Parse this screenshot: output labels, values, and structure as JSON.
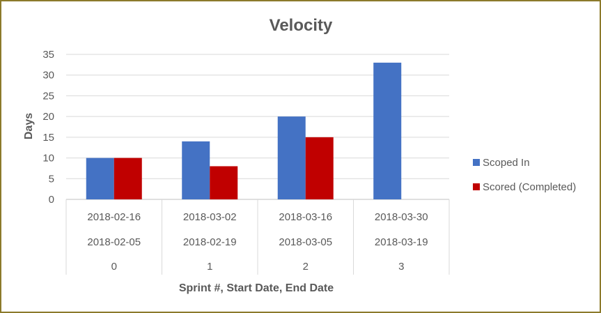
{
  "chart_data": {
    "type": "bar",
    "title": "Velocity",
    "ylabel": "Days",
    "xlabel": "Sprint #, Start Date, End Date",
    "ylim": [
      0,
      35
    ],
    "yticks": [
      0,
      5,
      10,
      15,
      20,
      25,
      30,
      35
    ],
    "grid": true,
    "legend_position": "right",
    "category_levels": {
      "end_date": [
        "2018-02-16",
        "2018-03-02",
        "2018-03-16",
        "2018-03-30"
      ],
      "start_date": [
        "2018-02-05",
        "2018-02-19",
        "2018-03-05",
        "2018-03-19"
      ],
      "sprint": [
        "0",
        "1",
        "2",
        "3"
      ]
    },
    "series": [
      {
        "name": "Scoped In",
        "color": "#4472c4",
        "values": [
          10,
          14,
          20,
          33
        ]
      },
      {
        "name": "Scored (Completed)",
        "color": "#c00000",
        "values": [
          10,
          8,
          15,
          null
        ]
      }
    ]
  }
}
